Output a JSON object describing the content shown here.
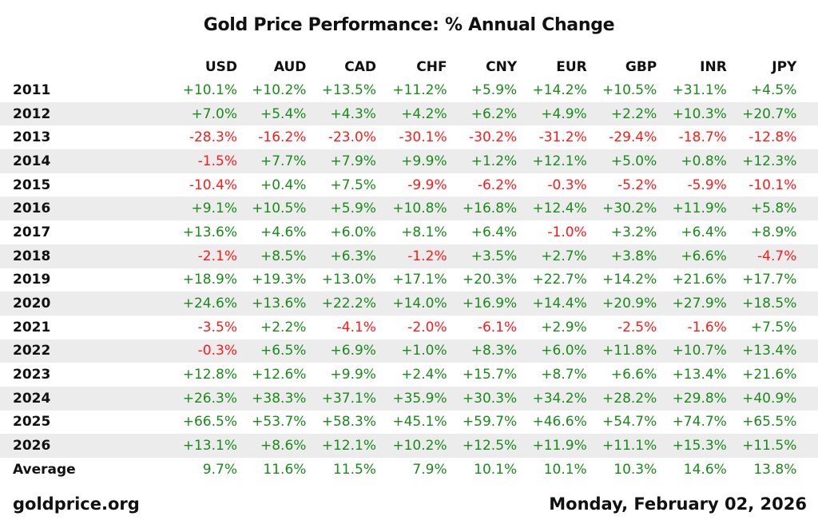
{
  "title": "Gold Price Performance: % Annual Change",
  "colors": {
    "positive": "#1a8a1a",
    "negative": "#ff1a1a",
    "stripe": "#ececec"
  },
  "footer": {
    "source": "goldprice.org",
    "date": "Monday, February 02, 2026"
  },
  "chart_data": {
    "type": "table",
    "title": "Gold Price Performance: % Annual Change",
    "columns": [
      "USD",
      "AUD",
      "CAD",
      "CHF",
      "CNY",
      "EUR",
      "GBP",
      "INR",
      "JPY"
    ],
    "rows": [
      {
        "label": "2011",
        "values": [
          "+10.1%",
          "+10.2%",
          "+13.5%",
          "+11.2%",
          "+5.9%",
          "+14.2%",
          "+10.5%",
          "+31.1%",
          "+4.5%"
        ]
      },
      {
        "label": "2012",
        "values": [
          "+7.0%",
          "+5.4%",
          "+4.3%",
          "+4.2%",
          "+6.2%",
          "+4.9%",
          "+2.2%",
          "+10.3%",
          "+20.7%"
        ]
      },
      {
        "label": "2013",
        "values": [
          "-28.3%",
          "-16.2%",
          "-23.0%",
          "-30.1%",
          "-30.2%",
          "-31.2%",
          "-29.4%",
          "-18.7%",
          "-12.8%"
        ]
      },
      {
        "label": "2014",
        "values": [
          "-1.5%",
          "+7.7%",
          "+7.9%",
          "+9.9%",
          "+1.2%",
          "+12.1%",
          "+5.0%",
          "+0.8%",
          "+12.3%"
        ]
      },
      {
        "label": "2015",
        "values": [
          "-10.4%",
          "+0.4%",
          "+7.5%",
          "-9.9%",
          "-6.2%",
          "-0.3%",
          "-5.2%",
          "-5.9%",
          "-10.1%"
        ]
      },
      {
        "label": "2016",
        "values": [
          "+9.1%",
          "+10.5%",
          "+5.9%",
          "+10.8%",
          "+16.8%",
          "+12.4%",
          "+30.2%",
          "+11.9%",
          "+5.8%"
        ]
      },
      {
        "label": "2017",
        "values": [
          "+13.6%",
          "+4.6%",
          "+6.0%",
          "+8.1%",
          "+6.4%",
          "-1.0%",
          "+3.2%",
          "+6.4%",
          "+8.9%"
        ]
      },
      {
        "label": "2018",
        "values": [
          "-2.1%",
          "+8.5%",
          "+6.3%",
          "-1.2%",
          "+3.5%",
          "+2.7%",
          "+3.8%",
          "+6.6%",
          "-4.7%"
        ]
      },
      {
        "label": "2019",
        "values": [
          "+18.9%",
          "+19.3%",
          "+13.0%",
          "+17.1%",
          "+20.3%",
          "+22.7%",
          "+14.2%",
          "+21.6%",
          "+17.7%"
        ]
      },
      {
        "label": "2020",
        "values": [
          "+24.6%",
          "+13.6%",
          "+22.2%",
          "+14.0%",
          "+16.9%",
          "+14.4%",
          "+20.9%",
          "+27.9%",
          "+18.5%"
        ]
      },
      {
        "label": "2021",
        "values": [
          "-3.5%",
          "+2.2%",
          "-4.1%",
          "-2.0%",
          "-6.1%",
          "+2.9%",
          "-2.5%",
          "-1.6%",
          "+7.5%"
        ]
      },
      {
        "label": "2022",
        "values": [
          "-0.3%",
          "+6.5%",
          "+6.9%",
          "+1.0%",
          "+8.3%",
          "+6.0%",
          "+11.8%",
          "+10.7%",
          "+13.4%"
        ]
      },
      {
        "label": "2023",
        "values": [
          "+12.8%",
          "+12.6%",
          "+9.9%",
          "+2.4%",
          "+15.7%",
          "+8.7%",
          "+6.6%",
          "+13.4%",
          "+21.6%"
        ]
      },
      {
        "label": "2024",
        "values": [
          "+26.3%",
          "+38.3%",
          "+37.1%",
          "+35.9%",
          "+30.3%",
          "+34.2%",
          "+28.2%",
          "+29.8%",
          "+40.9%"
        ]
      },
      {
        "label": "2025",
        "values": [
          "+66.5%",
          "+53.7%",
          "+58.3%",
          "+45.1%",
          "+59.7%",
          "+46.6%",
          "+54.7%",
          "+74.7%",
          "+65.5%"
        ]
      },
      {
        "label": "2026",
        "values": [
          "+13.1%",
          "+8.6%",
          "+12.1%",
          "+10.2%",
          "+12.5%",
          "+11.9%",
          "+11.1%",
          "+15.3%",
          "+11.5%"
        ]
      },
      {
        "label": "Average",
        "values": [
          "9.7%",
          "11.6%",
          "11.5%",
          "7.9%",
          "10.1%",
          "10.1%",
          "10.3%",
          "14.6%",
          "13.8%"
        ]
      }
    ]
  }
}
